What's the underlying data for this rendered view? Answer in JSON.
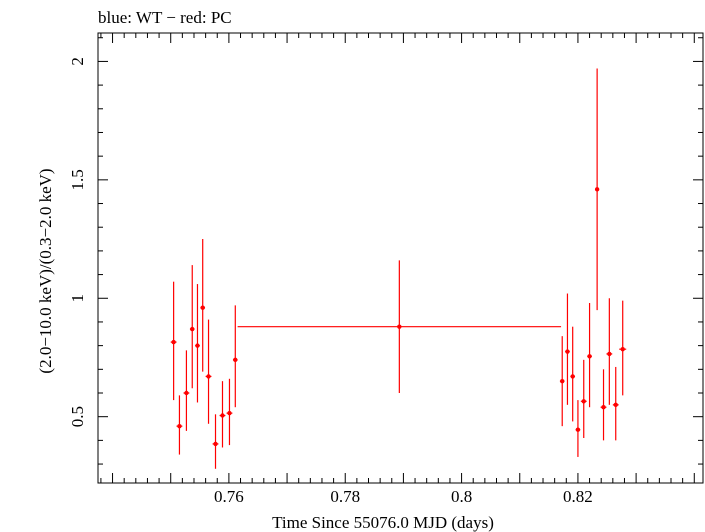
{
  "chart_data": {
    "type": "scatter",
    "title": "blue: WT − red: PC",
    "xlabel": "Time Since 55076.0 MJD (days)",
    "ylabel": "(2.0−10.0 keV)/(0.3−2.0 keV)",
    "xlim": [
      0.7375,
      0.8415
    ],
    "ylim": [
      0.22,
      2.12
    ],
    "x_ticks": [
      0.76,
      0.78,
      0.8,
      0.82
    ],
    "x_tick_labels": [
      "0.76",
      "0.78",
      "0.8",
      "0.82"
    ],
    "y_ticks": [
      0.5,
      1,
      1.5,
      2
    ],
    "y_tick_labels": [
      "0.5",
      "1",
      "1.5",
      "2"
    ],
    "grid": false,
    "series": [
      {
        "color": "#ff0000",
        "points": [
          {
            "x": 0.7505,
            "y": 0.815,
            "xerr": 0.0005,
            "ylo": 0.57,
            "yhi": 1.07
          },
          {
            "x": 0.7515,
            "y": 0.46,
            "xerr": 0.0005,
            "ylo": 0.34,
            "yhi": 0.59
          },
          {
            "x": 0.7527,
            "y": 0.6,
            "xerr": 0.0005,
            "ylo": 0.44,
            "yhi": 0.78
          },
          {
            "x": 0.7537,
            "y": 0.87,
            "xerr": 0.0004,
            "ylo": 0.62,
            "yhi": 1.14
          },
          {
            "x": 0.7546,
            "y": 0.8,
            "xerr": 0.0004,
            "ylo": 0.56,
            "yhi": 1.06
          },
          {
            "x": 0.7555,
            "y": 0.96,
            "xerr": 0.0004,
            "ylo": 0.69,
            "yhi": 1.25
          },
          {
            "x": 0.7565,
            "y": 0.67,
            "xerr": 0.0005,
            "ylo": 0.47,
            "yhi": 0.91
          },
          {
            "x": 0.7577,
            "y": 0.385,
            "xerr": 0.0005,
            "ylo": 0.28,
            "yhi": 0.51
          },
          {
            "x": 0.7589,
            "y": 0.505,
            "xerr": 0.0005,
            "ylo": 0.37,
            "yhi": 0.65
          },
          {
            "x": 0.7601,
            "y": 0.515,
            "xerr": 0.0005,
            "ylo": 0.38,
            "yhi": 0.66
          },
          {
            "x": 0.7611,
            "y": 0.74,
            "xerr": 0.0004,
            "ylo": 0.54,
            "yhi": 0.97
          },
          {
            "x": 0.7893,
            "y": 0.88,
            "xerr": 0.0278,
            "ylo": 0.6,
            "yhi": 1.16
          },
          {
            "x": 0.8173,
            "y": 0.65,
            "xerr": 0.0004,
            "ylo": 0.46,
            "yhi": 0.84
          },
          {
            "x": 0.8182,
            "y": 0.775,
            "xerr": 0.0004,
            "ylo": 0.55,
            "yhi": 1.02
          },
          {
            "x": 0.8191,
            "y": 0.67,
            "xerr": 0.0004,
            "ylo": 0.48,
            "yhi": 0.88
          },
          {
            "x": 0.82,
            "y": 0.445,
            "xerr": 0.0004,
            "ylo": 0.33,
            "yhi": 0.57
          },
          {
            "x": 0.821,
            "y": 0.565,
            "xerr": 0.0005,
            "ylo": 0.41,
            "yhi": 0.74
          },
          {
            "x": 0.822,
            "y": 0.755,
            "xerr": 0.0004,
            "ylo": 0.54,
            "yhi": 0.98
          },
          {
            "x": 0.8233,
            "y": 1.46,
            "xerr": 0.0003,
            "ylo": 0.95,
            "yhi": 1.97
          },
          {
            "x": 0.8244,
            "y": 0.54,
            "xerr": 0.0005,
            "ylo": 0.4,
            "yhi": 0.7
          },
          {
            "x": 0.8254,
            "y": 0.765,
            "xerr": 0.0005,
            "ylo": 0.55,
            "yhi": 1.0
          },
          {
            "x": 0.8265,
            "y": 0.55,
            "xerr": 0.0005,
            "ylo": 0.4,
            "yhi": 0.71
          },
          {
            "x": 0.8277,
            "y": 0.785,
            "xerr": 0.0006,
            "ylo": 0.59,
            "yhi": 0.99
          }
        ]
      }
    ]
  }
}
